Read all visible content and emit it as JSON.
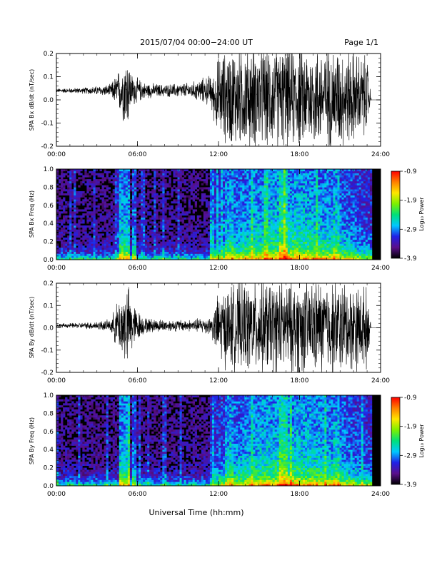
{
  "header": {
    "title": "2015/07/04  00:00−24:00 UT",
    "page": "Page 1/1"
  },
  "x_axis_label": "Universal Time (hh:mm)",
  "colorbar": {
    "label": "Log₁₀ Power",
    "ticks": [
      "-0.9",
      "-1.9",
      "-2.9",
      "-3.9"
    ],
    "tick_values": [
      -0.9,
      -1.9,
      -2.9,
      -3.9
    ],
    "range": [
      -3.9,
      -0.9
    ],
    "colors": [
      "#000000",
      "#5a0f8c",
      "#2020e6",
      "#00c8ff",
      "#00e07a",
      "#7cf000",
      "#ffe600",
      "#ff8000",
      "#ff0000"
    ]
  },
  "chart_data": [
    {
      "type": "line",
      "ylabel": "SPA Bx dB/dt (nT/sec)",
      "xlim": [
        "00:00",
        "24:00"
      ],
      "ylim": [
        -0.2,
        0.2
      ],
      "xticks": [
        "00:00",
        "06:00",
        "12:00",
        "18:00",
        "24:00"
      ],
      "yticks": [
        "-0.2",
        "-0.1",
        "0.0",
        "0.1",
        "0.2"
      ],
      "baseline": 0.04,
      "amplitude_profile_hours": [
        0,
        2,
        4,
        4.8,
        5.2,
        5.6,
        6.5,
        8,
        10,
        11.5,
        12,
        13,
        15,
        17,
        19,
        21,
        23,
        23.3,
        24
      ],
      "amplitude_profile_values": [
        0.01,
        0.015,
        0.03,
        0.12,
        0.2,
        0.08,
        0.04,
        0.03,
        0.04,
        0.08,
        0.2,
        0.25,
        0.25,
        0.25,
        0.25,
        0.25,
        0.2,
        0.0,
        0.0
      ],
      "color": "#000000"
    },
    {
      "type": "heatmap",
      "ylabel": "SPA Bx Freq (Hz)",
      "xlim": [
        "00:00",
        "24:00"
      ],
      "ylim": [
        0.0,
        1.0
      ],
      "xticks": [
        "00:00",
        "06:00",
        "12:00",
        "18:00",
        "24:00"
      ],
      "yticks": [
        "0.0",
        "0.2",
        "0.4",
        "0.6",
        "0.8",
        "1.0"
      ],
      "colorbar_range": [
        -3.9,
        -0.9
      ]
    },
    {
      "type": "line",
      "ylabel": "SPA By dB/dt (nT/sec)",
      "xlim": [
        "00:00",
        "24:00"
      ],
      "ylim": [
        -0.2,
        0.2
      ],
      "xticks": [
        "00:00",
        "06:00",
        "12:00",
        "18:00",
        "24:00"
      ],
      "yticks": [
        "-0.2",
        "-0.1",
        "0.0",
        "0.1",
        "0.2"
      ],
      "baseline": 0.01,
      "amplitude_profile_hours": [
        0,
        2,
        4,
        4.5,
        5.2,
        5.8,
        6.5,
        8,
        10,
        11.5,
        12,
        13,
        15,
        17,
        19,
        21,
        23,
        23.3,
        24
      ],
      "amplitude_profile_values": [
        0.01,
        0.015,
        0.03,
        0.12,
        0.22,
        0.1,
        0.04,
        0.03,
        0.03,
        0.05,
        0.18,
        0.22,
        0.24,
        0.24,
        0.24,
        0.24,
        0.2,
        0.0,
        0.0
      ],
      "color": "#000000"
    },
    {
      "type": "heatmap",
      "ylabel": "SPA By Freq (Hz)",
      "xlim": [
        "00:00",
        "24:00"
      ],
      "ylim": [
        0.0,
        1.0
      ],
      "xticks": [
        "00:00",
        "06:00",
        "12:00",
        "18:00",
        "24:00"
      ],
      "yticks": [
        "0.0",
        "0.2",
        "0.4",
        "0.6",
        "0.8",
        "1.0"
      ],
      "colorbar_range": [
        -3.9,
        -0.9
      ]
    }
  ]
}
